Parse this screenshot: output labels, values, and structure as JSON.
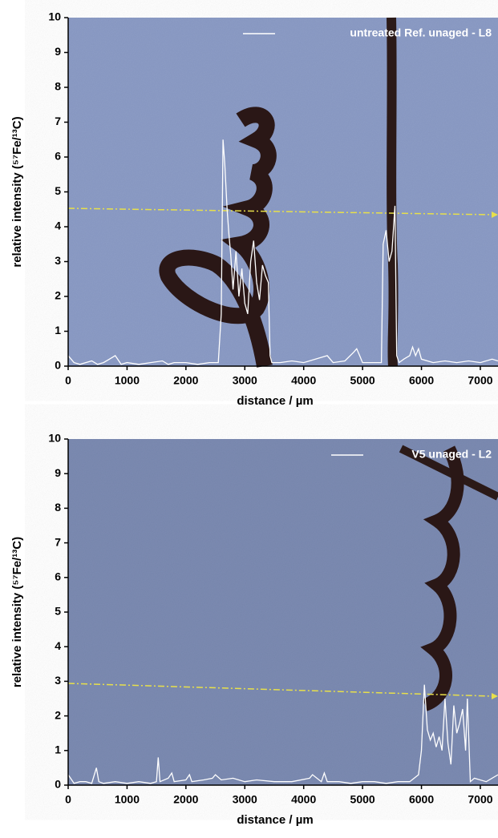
{
  "chart_data": [
    {
      "type": "line",
      "x": [
        0,
        100,
        200,
        300,
        400,
        500,
        600,
        700,
        800,
        900,
        1000,
        1200,
        1400,
        1600,
        1700,
        1800,
        2000,
        2200,
        2400,
        2550,
        2600,
        2630,
        2660,
        2700,
        2730,
        2760,
        2800,
        2850,
        2900,
        2950,
        3000,
        3050,
        3100,
        3150,
        3200,
        3250,
        3300,
        3350,
        3400,
        3430,
        3460,
        3600,
        3800,
        4000,
        4200,
        4400,
        4500,
        4700,
        4850,
        4900,
        4950,
        5000,
        5200,
        5320,
        5350,
        5400,
        5450,
        5500,
        5550,
        5580,
        5620,
        5700,
        5800,
        5850,
        5900,
        5950,
        6000,
        6200,
        6400,
        6600,
        6800,
        7000,
        7200,
        7300
      ],
      "series": [
        {
          "name": "untreated Ref. unaged - L8",
          "color": "#ffffff",
          "values": [
            0.3,
            0.1,
            0.05,
            0.1,
            0.15,
            0.05,
            0.1,
            0.2,
            0.3,
            0.05,
            0.1,
            0.05,
            0.1,
            0.15,
            0.05,
            0.1,
            0.1,
            0.05,
            0.1,
            0.1,
            1.5,
            6.5,
            5.8,
            4.5,
            3.8,
            3.2,
            2.2,
            3.3,
            2.0,
            2.8,
            1.8,
            1.5,
            3.0,
            3.6,
            2.4,
            1.9,
            2.9,
            2.6,
            2.4,
            0.3,
            0.1,
            0.1,
            0.15,
            0.1,
            0.2,
            0.3,
            0.1,
            0.15,
            0.4,
            0.5,
            0.3,
            0.1,
            0.1,
            0.1,
            3.5,
            3.9,
            3.0,
            3.3,
            4.6,
            0.3,
            0.1,
            0.2,
            0.3,
            0.55,
            0.3,
            0.5,
            0.2,
            0.1,
            0.15,
            0.1,
            0.15,
            0.1,
            0.2,
            0.15
          ]
        }
      ],
      "xlim": [
        0,
        7300
      ],
      "ylim": [
        0,
        10
      ],
      "xticks": [
        0,
        1000,
        2000,
        3000,
        4000,
        5000,
        6000,
        7000
      ],
      "yticks": [
        0,
        1,
        2,
        3,
        4,
        5,
        6,
        7,
        8,
        9,
        10
      ],
      "x_label": "distance / µm",
      "y_label": "relative intensity (⁵⁷Fe/¹³C)",
      "legend": "upper right"
    },
    {
      "type": "line",
      "x": [
        0,
        100,
        200,
        300,
        400,
        480,
        520,
        600,
        800,
        1000,
        1200,
        1400,
        1500,
        1530,
        1560,
        1700,
        1760,
        1800,
        2000,
        2060,
        2100,
        2300,
        2450,
        2500,
        2600,
        2800,
        3000,
        3200,
        3500,
        3800,
        4100,
        4150,
        4300,
        4350,
        4400,
        4600,
        4800,
        5000,
        5200,
        5400,
        5600,
        5800,
        5950,
        6000,
        6050,
        6100,
        6150,
        6200,
        6250,
        6300,
        6350,
        6400,
        6450,
        6500,
        6550,
        6600,
        6650,
        6700,
        6750,
        6780,
        6830,
        6900,
        7100,
        7300
      ],
      "series": [
        {
          "name": "V5 unaged - L2",
          "color": "#ffffff",
          "values": [
            0.3,
            0.05,
            0.1,
            0.1,
            0.05,
            0.5,
            0.1,
            0.05,
            0.1,
            0.05,
            0.1,
            0.05,
            0.1,
            0.8,
            0.1,
            0.2,
            0.35,
            0.1,
            0.15,
            0.3,
            0.1,
            0.15,
            0.2,
            0.3,
            0.15,
            0.2,
            0.1,
            0.15,
            0.1,
            0.1,
            0.2,
            0.3,
            0.1,
            0.35,
            0.1,
            0.1,
            0.05,
            0.1,
            0.1,
            0.05,
            0.1,
            0.1,
            0.3,
            1.0,
            2.9,
            1.6,
            1.3,
            1.5,
            1.1,
            1.4,
            1.0,
            2.5,
            1.2,
            0.6,
            2.3,
            1.5,
            1.8,
            2.2,
            1.0,
            2.5,
            0.1,
            0.2,
            0.1,
            0.3
          ]
        }
      ],
      "xlim": [
        0,
        7300
      ],
      "ylim": [
        0,
        10
      ],
      "xticks": [
        0,
        1000,
        2000,
        3000,
        4000,
        5000,
        6000,
        7000
      ],
      "yticks": [
        0,
        1,
        2,
        3,
        4,
        5,
        6,
        7,
        8,
        9,
        10
      ],
      "x_label": "distance / µm",
      "y_label": "relative intensity (⁵⁷Fe/¹³C)",
      "legend": "upper right"
    }
  ]
}
